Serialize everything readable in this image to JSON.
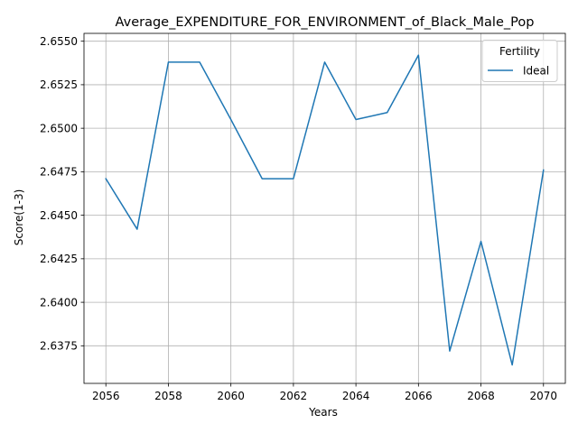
{
  "chart_data": {
    "type": "line",
    "title": "Average_EXPENDITURE_FOR_ENVIRONMENT_of_Black_Male_Pop",
    "xlabel": "Years",
    "ylabel": "Score(1-3)",
    "xlim": [
      2055.3,
      2070.7
    ],
    "ylim": [
      2.63534,
      2.65545
    ],
    "xticks": [
      2056,
      2058,
      2060,
      2062,
      2064,
      2066,
      2068,
      2070
    ],
    "yticks": [
      2.6375,
      2.64,
      2.6425,
      2.645,
      2.6475,
      2.65,
      2.6525,
      2.655
    ],
    "xtick_labels": [
      "2056",
      "2058",
      "2060",
      "2062",
      "2064",
      "2066",
      "2068",
      "2070"
    ],
    "ytick_labels": [
      "2.6375",
      "2.6400",
      "2.6425",
      "2.6450",
      "2.6475",
      "2.6500",
      "2.6525",
      "2.6550"
    ],
    "grid": true,
    "legend": {
      "title": "Fertility",
      "location": "upper right"
    },
    "x": [
      2056,
      2057,
      2058,
      2059,
      2060,
      2061,
      2062,
      2063,
      2064,
      2065,
      2066,
      2067,
      2068,
      2069,
      2070
    ],
    "series": [
      {
        "name": "Ideal",
        "color": "#1f77b4",
        "values": [
          2.6471,
          2.6442,
          2.6538,
          2.6538,
          2.6505,
          2.6471,
          2.6471,
          2.6538,
          2.6505,
          2.6509,
          2.6542,
          2.6372,
          2.6435,
          2.6364,
          2.6476
        ]
      }
    ]
  }
}
